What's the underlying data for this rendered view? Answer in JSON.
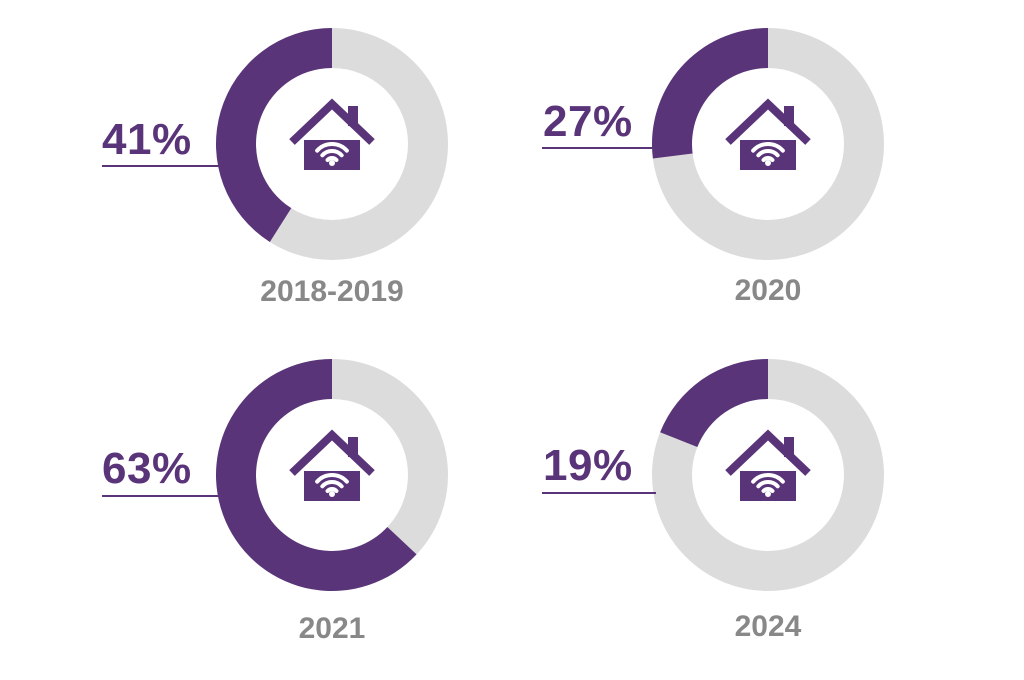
{
  "colors": {
    "accent": "#5a3479",
    "track": "#dcdcdc",
    "label": "#888888",
    "background": "#ffffff"
  },
  "icon": "smart-home-wifi-icon",
  "chart_data": [
    {
      "type": "pie",
      "category": "2018-2019",
      "value": 41,
      "value_label": "41%"
    },
    {
      "type": "pie",
      "category": "2020",
      "value": 27,
      "value_label": "27%"
    },
    {
      "type": "pie",
      "category": "2021",
      "value": 63,
      "value_label": "63%"
    },
    {
      "type": "pie",
      "category": "2024",
      "value": 19,
      "value_label": "19%"
    }
  ]
}
